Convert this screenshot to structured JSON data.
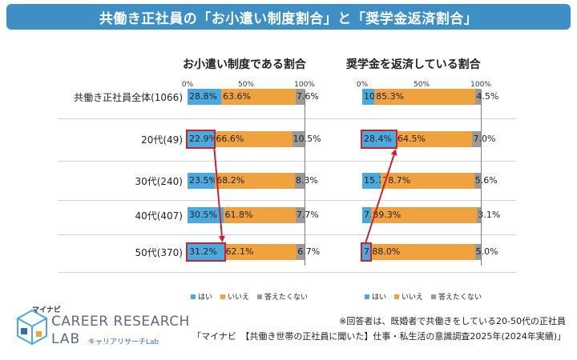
{
  "title": "共働き正社員の「お小遣い制度割合」と「奨学金返済割合」",
  "colors": {
    "yes": "#4aa9df",
    "no": "#f0a23f",
    "na": "#9a9a9a",
    "highlight": "#cc2030",
    "banner": "#3d8fc6"
  },
  "legend": [
    {
      "key": "yes",
      "label": "はい"
    },
    {
      "key": "no",
      "label": "いいえ"
    },
    {
      "key": "na",
      "label": "答えたくない"
    }
  ],
  "chart_data": [
    {
      "type": "bar",
      "stacked": true,
      "orientation": "horizontal",
      "title": "お小遣い制度である割合",
      "ticks": [
        "0%",
        "50%",
        "100%"
      ],
      "categories": [
        "共働き正社員全体(1066)",
        "20代(49)",
        "30代(240)",
        "40代(407)",
        "50代(370)"
      ],
      "series": [
        {
          "name": "はい",
          "values": [
            28.8,
            22.9,
            23.5,
            30.5,
            31.2
          ],
          "labels": [
            "28.8%",
            "22.9%",
            "23.5%",
            "30.5%",
            "31.2%"
          ]
        },
        {
          "name": "いいえ",
          "values": [
            63.6,
            66.6,
            68.2,
            61.8,
            62.1
          ],
          "labels": [
            "63.6%",
            "66.6%",
            "68.2%",
            "61.8%",
            "62.1%"
          ]
        },
        {
          "name": "答えたくない",
          "values": [
            7.6,
            10.5,
            8.3,
            7.7,
            6.7
          ],
          "labels": [
            "7.6%",
            "10.5%",
            "8.3%",
            "7.7%",
            "6.7%"
          ]
        }
      ],
      "highlights": [
        {
          "from": 1,
          "to": 4,
          "series": 0
        }
      ],
      "xlim": [
        0,
        100
      ]
    },
    {
      "type": "bar",
      "stacked": true,
      "orientation": "horizontal",
      "title": "奨学金を返済している割合",
      "ticks": [
        "0%",
        "50%",
        "100%"
      ],
      "categories": [
        "共働き正社員全体(1066)",
        "20代(49)",
        "30代(240)",
        "40代(407)",
        "50代(370)"
      ],
      "series": [
        {
          "name": "はい",
          "values": [
            10.2,
            28.4,
            15.7,
            7.6,
            7.0
          ],
          "labels": [
            "10.2%",
            "28.4%",
            "15.7%",
            "7.6%",
            "7.0%"
          ]
        },
        {
          "name": "いいえ",
          "values": [
            85.3,
            64.5,
            78.7,
            89.3,
            88.0
          ],
          "labels": [
            "85.3%",
            "64.5%",
            "78.7%",
            "89.3%",
            "88.0%"
          ]
        },
        {
          "name": "答えたくない",
          "values": [
            4.5,
            7.0,
            5.6,
            3.1,
            5.0
          ],
          "labels": [
            "4.5%",
            "7.0%",
            "5.6%",
            "3.1%",
            "5.0%"
          ]
        }
      ],
      "highlights": [
        {
          "from": 4,
          "to": 1,
          "series": 0
        }
      ],
      "xlim": [
        0,
        100
      ]
    }
  ],
  "logo": {
    "brand_small": "マイナビ",
    "brand_main": "CAREER RESEARCH",
    "brand_lab": "LAB",
    "brand_sub": "キャリアリサーチLab"
  },
  "notes": {
    "line1": "※回答者は、既婚者で共働きをしている20-50代の正社員",
    "line2": "「マイナビ　【共働き世帯の正社員に聞いた】仕事・私生活の意識調査2025年(2024年実績)」"
  }
}
